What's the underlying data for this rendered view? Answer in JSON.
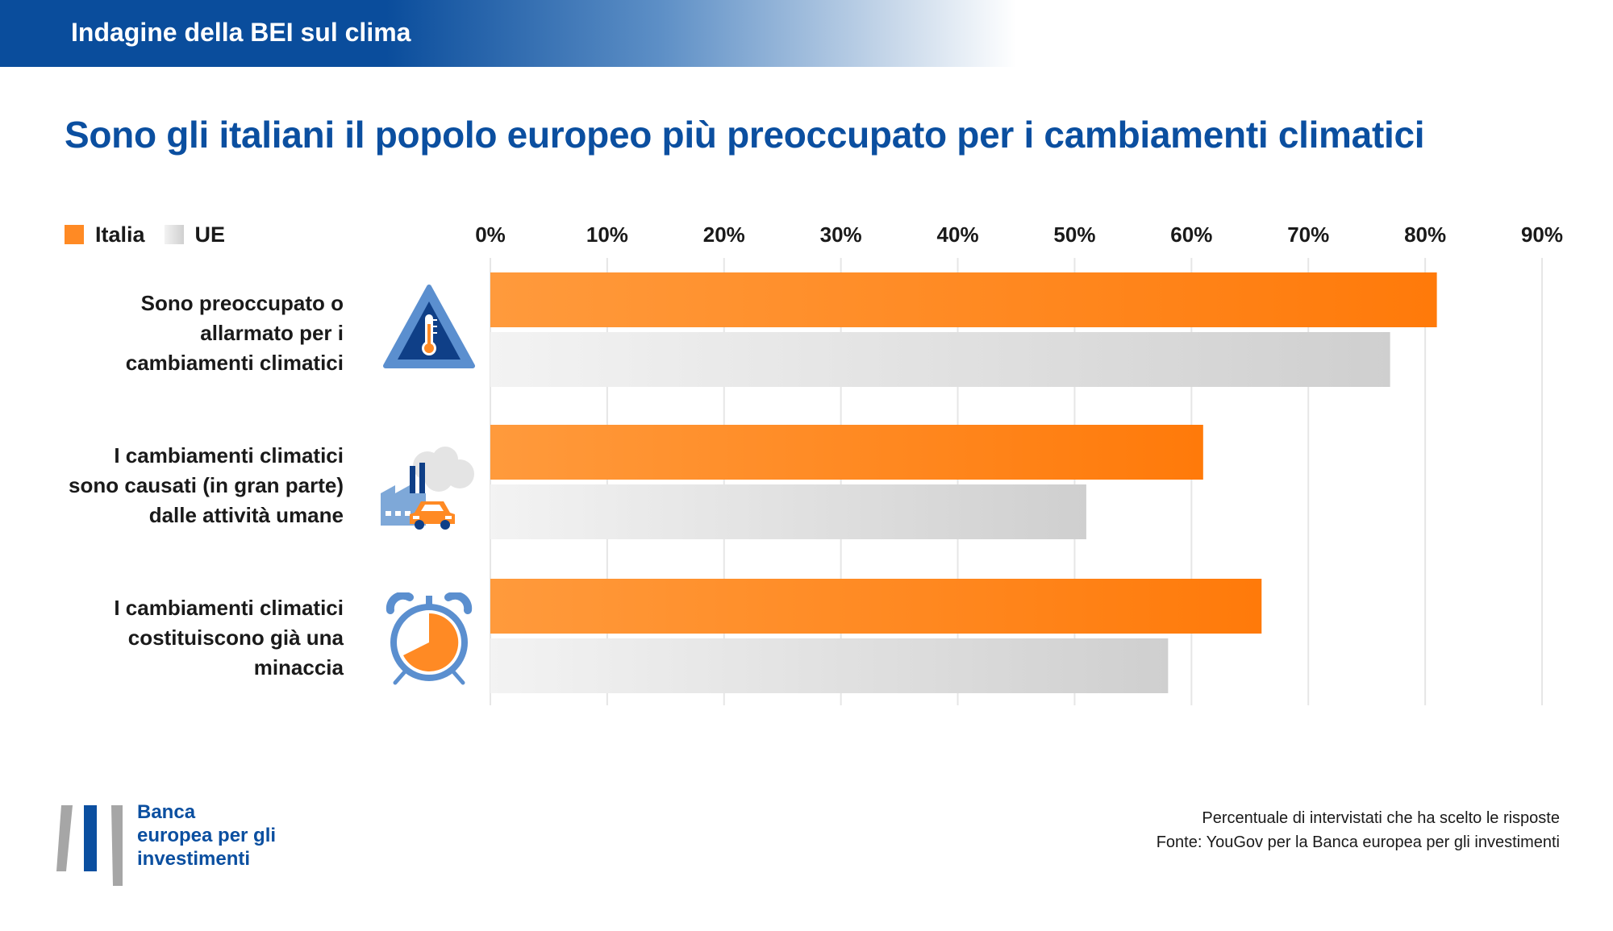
{
  "header": {
    "title": "Indagine della BEI sul clima"
  },
  "title": "Sono gli italiani il popolo europeo più preoccupato per i cambiamenti climatici",
  "legend": [
    {
      "label": "Italia",
      "color": "#ff8a24"
    },
    {
      "label": "UE",
      "color": "#e2e2e2"
    }
  ],
  "chart_data": {
    "type": "bar",
    "orientation": "horizontal",
    "categories": [
      [
        "Sono preoccupato o",
        "allarmato per i",
        "cambiamenti climatici"
      ],
      [
        "I cambiamenti climatici",
        "sono causati (in gran parte)",
        "dalle attività umane"
      ],
      [
        "I cambiamenti climatici",
        "costituiscono già una",
        "minaccia"
      ]
    ],
    "category_icons": [
      "thermometer-warning-icon",
      "factory-car-icon",
      "alarm-clock-icon"
    ],
    "series": [
      {
        "name": "Italia",
        "values": [
          81,
          61,
          66
        ],
        "color": "#ff8a24"
      },
      {
        "name": "UE",
        "values": [
          77,
          51,
          58
        ],
        "color": "#e2e2e2"
      }
    ],
    "xlim": [
      0,
      90
    ],
    "xticks": [
      "0%",
      "10%",
      "20%",
      "30%",
      "40%",
      "50%",
      "60%",
      "70%",
      "80%",
      "90%"
    ],
    "grid": true,
    "legend_position": "top-left"
  },
  "footer": {
    "logo_lines": [
      "Banca",
      "europea per gli",
      "investimenti"
    ],
    "note": "Percentuale di intervistati che ha scelto le risposte",
    "source": "Fonte: YouGov per la Banca europea per gli investimenti"
  }
}
